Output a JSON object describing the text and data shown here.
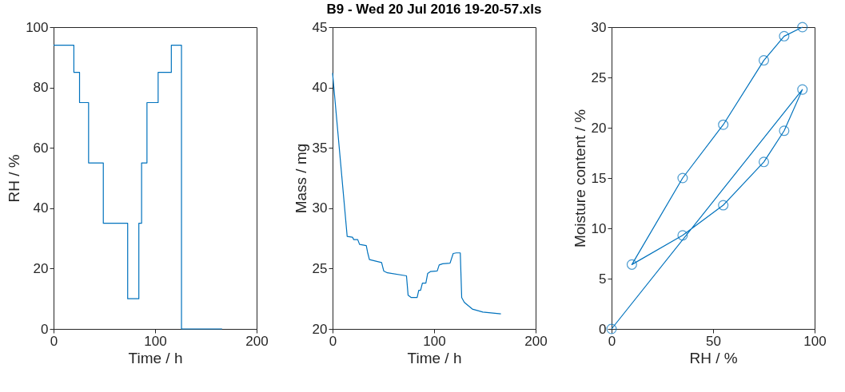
{
  "chart_data": [
    {
      "type": "step",
      "xlabel": "Time / h",
      "ylabel": "RH / %",
      "xlim": [
        0,
        200
      ],
      "xticks": [
        0,
        100,
        200
      ],
      "ylim": [
        0,
        100
      ],
      "yticks": [
        0,
        20,
        40,
        60,
        80,
        100
      ],
      "grid": false,
      "marker": "none",
      "series": [
        {
          "color": "#0072bd",
          "x": [
            0,
            20,
            25.6,
            34.5,
            49,
            73,
            84,
            86.7,
            92,
            103,
            116,
            126,
            166
          ],
          "values": [
            94,
            85,
            75,
            55,
            35,
            10,
            35,
            55,
            75,
            85,
            94,
            0,
            0
          ]
        }
      ]
    },
    {
      "type": "line",
      "title": "B9 - Wed 20 Jul 2016 19-20-57.xls",
      "xlabel": "Time / h",
      "ylabel": "Mass / mg",
      "xlim": [
        0,
        200
      ],
      "xticks": [
        0,
        100,
        200
      ],
      "ylim": [
        20,
        45
      ],
      "yticks": [
        20,
        25,
        30,
        35,
        40,
        45
      ],
      "grid": false,
      "marker": "none",
      "series": [
        {
          "color": "#0072bd",
          "x": [
            0,
            14.4,
            19.6,
            20.9,
            24.8,
            26.6,
            33.2,
            34.5,
            36.3,
            48.3,
            50.4,
            54,
            72.8,
            74.4,
            77.5,
            83.3,
            84.9,
            86.7,
            88.5,
            91.9,
            93.7,
            96.3,
            103.1,
            105,
            108.4,
            115.7,
            118.8,
            121.9,
            125.8,
            127.2,
            129.8,
            137.6,
            148,
            165.8
          ],
          "values": [
            41.2,
            27.66,
            27.6,
            27.4,
            27.4,
            27.0,
            26.9,
            26.35,
            25.75,
            25.5,
            24.8,
            24.65,
            24.4,
            22.8,
            22.6,
            22.6,
            23.2,
            23.2,
            23.8,
            23.8,
            24.6,
            24.75,
            24.8,
            25.3,
            25.4,
            25.45,
            26.25,
            26.3,
            26.3,
            22.6,
            22.2,
            21.65,
            21.4,
            21.25
          ]
        }
      ]
    },
    {
      "type": "line",
      "xlabel": "RH / %",
      "ylabel": "Moisture content / %",
      "xlim": [
        0,
        100
      ],
      "xticks": [
        0,
        50,
        100
      ],
      "ylim": [
        0,
        30
      ],
      "yticks": [
        0,
        5,
        10,
        15,
        20,
        25,
        30
      ],
      "grid": false,
      "marker": "circle",
      "series": [
        {
          "color": "#0072bd",
          "x": [
            0,
            94,
            85,
            75,
            55,
            35,
            10,
            35,
            55,
            75,
            85,
            94
          ],
          "values": [
            0,
            23.8,
            19.7,
            16.6,
            12.3,
            9.3,
            6.4,
            15.0,
            20.3,
            26.7,
            29.1,
            30.0
          ]
        }
      ]
    }
  ]
}
